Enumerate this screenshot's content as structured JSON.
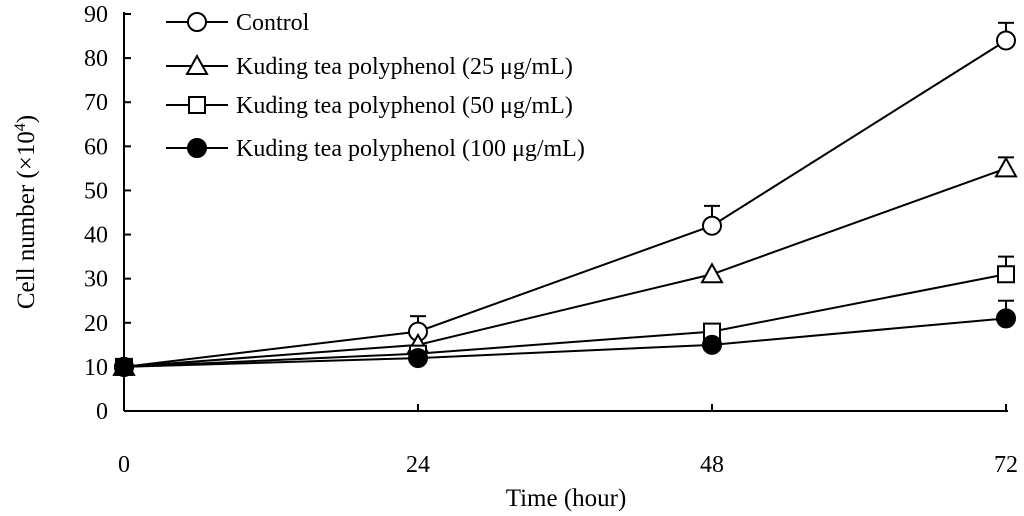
{
  "chart_data": {
    "type": "line",
    "xlabel": "Time (hour)",
    "ylabel": "Cell number (×10",
    "ylabel_sup": "4",
    "ylabel_close": ")",
    "x": [
      0,
      24,
      48,
      72
    ],
    "xlim": [
      0,
      72
    ],
    "ylim": [
      0,
      90
    ],
    "yticks": [
      0,
      10,
      20,
      30,
      40,
      50,
      60,
      70,
      80,
      90
    ],
    "xticks": [
      0,
      24,
      48,
      72
    ],
    "grid": false,
    "legend_position": "top-left",
    "series": [
      {
        "name": "Control",
        "marker": "circle-open",
        "values": [
          10,
          18,
          42,
          84
        ],
        "errors": [
          0,
          3.5,
          4.5,
          4
        ]
      },
      {
        "name": "Kuding tea polyphenol (25 μg/mL)",
        "marker": "triangle-open",
        "values": [
          10,
          15,
          31,
          55
        ],
        "errors": [
          0,
          0,
          0,
          2.5
        ]
      },
      {
        "name": "Kuding tea polyphenol (50 μg/mL)",
        "marker": "square-open",
        "values": [
          10,
          13,
          18,
          31
        ],
        "errors": [
          0,
          0,
          0,
          4
        ]
      },
      {
        "name": "Kuding tea polyphenol (100 μg/mL)",
        "marker": "circle-filled",
        "values": [
          10,
          12,
          15,
          21
        ],
        "errors": [
          0,
          0,
          0,
          4
        ]
      }
    ]
  }
}
